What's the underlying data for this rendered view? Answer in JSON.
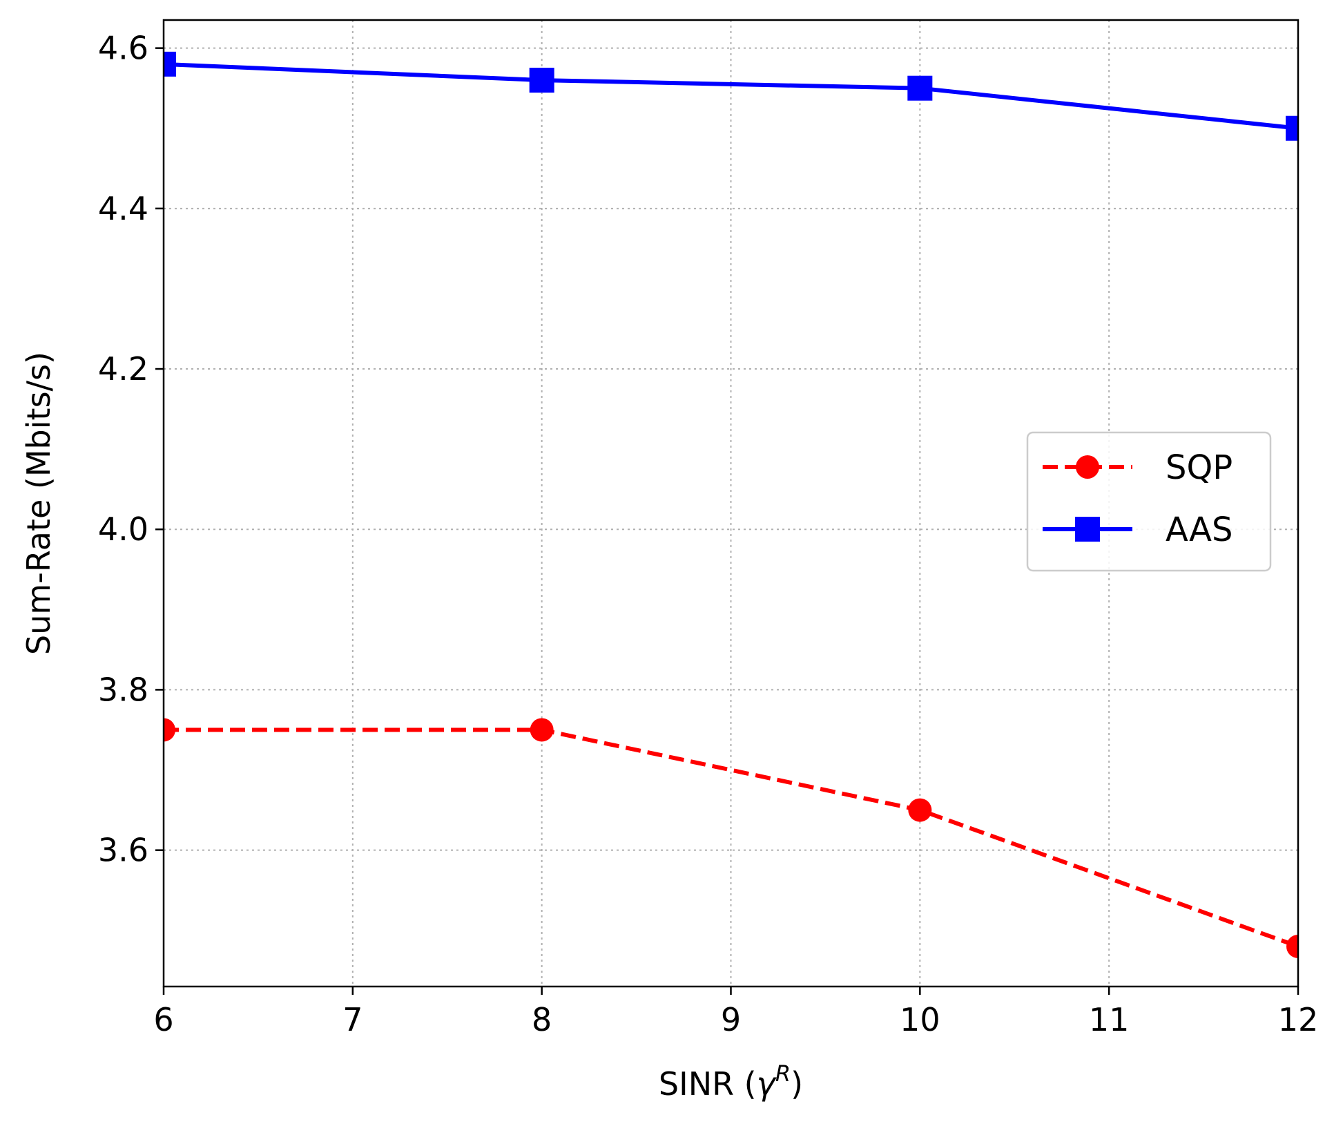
{
  "chart_data": {
    "type": "line",
    "title": "",
    "xlabel": "SINR (γ^R)",
    "xlabel_parts": {
      "base": "SINR (",
      "symbol": "γ",
      "superscript": "R",
      "close": ")"
    },
    "ylabel": "Sum-Rate (Mbits/s)",
    "xlim": [
      6,
      12
    ],
    "ylim": [
      3.43,
      4.635
    ],
    "x_ticks": [
      6,
      7,
      8,
      9,
      10,
      11,
      12
    ],
    "x_tick_labels": [
      "6",
      "7",
      "8",
      "9",
      "10",
      "11",
      "12"
    ],
    "y_ticks": [
      3.6,
      3.8,
      4.0,
      4.2,
      4.4,
      4.6
    ],
    "y_tick_labels": [
      "3.6",
      "3.8",
      "4.0",
      "4.2",
      "4.4",
      "4.6"
    ],
    "grid": true,
    "legend_position": "center-right",
    "series": [
      {
        "name": "SQP",
        "color": "#ff0000",
        "line_style": "dashed",
        "marker": "circle",
        "x": [
          6,
          8,
          10,
          12
        ],
        "y": [
          3.75,
          3.75,
          3.65,
          3.48
        ]
      },
      {
        "name": "AAS",
        "color": "#0000ff",
        "line_style": "solid",
        "marker": "square",
        "x": [
          6,
          8,
          10,
          12
        ],
        "y": [
          4.58,
          4.56,
          4.55,
          4.5
        ]
      }
    ]
  }
}
